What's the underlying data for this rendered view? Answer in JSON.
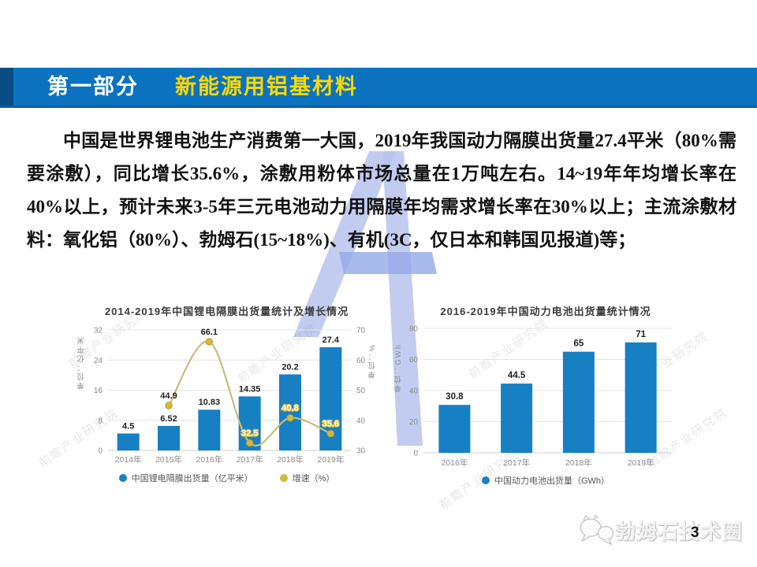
{
  "header": {
    "part_label": "第一部分",
    "title": "新能源用铝基材料"
  },
  "paragraph": {
    "text": "中国是世界锂电池生产消费第一大国，2019年我国动力隔膜出货量27.4平米（80%需要涂敷），同比增长35.6%，涂敷用粉体市场总量在1万吨左右。14~19年年均增长率在40%以上，预计未来3-5年三元电池动力用隔膜年均需求增长率在30%以上；主流涂敷材料：氧化铝（80%）、勃姆石(15~18%)、有机(3C，仅日本和韩国见报道)等；"
  },
  "chart_data": [
    {
      "type": "bar",
      "title": "2014-2019年中国锂电隔膜出货量统计及增长情况",
      "categories": [
        "2014年",
        "2015年",
        "2016年",
        "2017年",
        "2018年",
        "2019年"
      ],
      "series": [
        {
          "name": "中国锂电隔膜出货量（亿平米）",
          "kind": "bar",
          "axis": "left",
          "color": "#1680c2",
          "values": [
            4.5,
            6.52,
            10.83,
            14.35,
            20.2,
            27.4
          ]
        },
        {
          "name": "增速（%）",
          "kind": "line",
          "axis": "right",
          "color": "#c9bd7c",
          "values": [
            null,
            44.9,
            66.1,
            32.5,
            40.8,
            35.6
          ]
        }
      ],
      "left_axis": {
        "label": "单位：亿平米",
        "ticks": [
          0,
          8,
          16,
          24,
          32
        ],
        "range": [
          0,
          32
        ]
      },
      "right_axis": {
        "label": "单位：%",
        "ticks": [
          30,
          40,
          50,
          60,
          70
        ],
        "range": [
          30,
          70
        ]
      },
      "legend": [
        "中国锂电隔膜出货量（亿平米）",
        "增速（%）"
      ],
      "grid": true,
      "legend_position": "bottom"
    },
    {
      "type": "bar",
      "title": "2016-2019年中国动力电池出货量统计情况",
      "categories": [
        "2016年",
        "2017年",
        "2018年",
        "2019年"
      ],
      "values": [
        30.8,
        44.5,
        65,
        71
      ],
      "bar_color": "#1680c2",
      "left_axis": {
        "label": "单位：GWh",
        "ticks": [
          0,
          20,
          40,
          60,
          80
        ],
        "range": [
          0,
          80
        ]
      },
      "legend": [
        "中国动力电池出货量（GWh）"
      ],
      "grid": true,
      "legend_position": "bottom"
    }
  ],
  "watermark": {
    "brand_text": "前瞻产业研究院"
  },
  "footer": {
    "brand": "勃姆石技术圈",
    "page_number": "3"
  },
  "colors": {
    "header_bar": "#0b73c0",
    "header_notch": "#0a4d85",
    "header_part_color": "#ffffff",
    "header_title_color": "#ffd800",
    "bar_blue": "#1680c2",
    "growth_line": "#c9bd7c",
    "marker_gold": "#d2b83e",
    "watermark_blue": "#b7c3ef"
  }
}
